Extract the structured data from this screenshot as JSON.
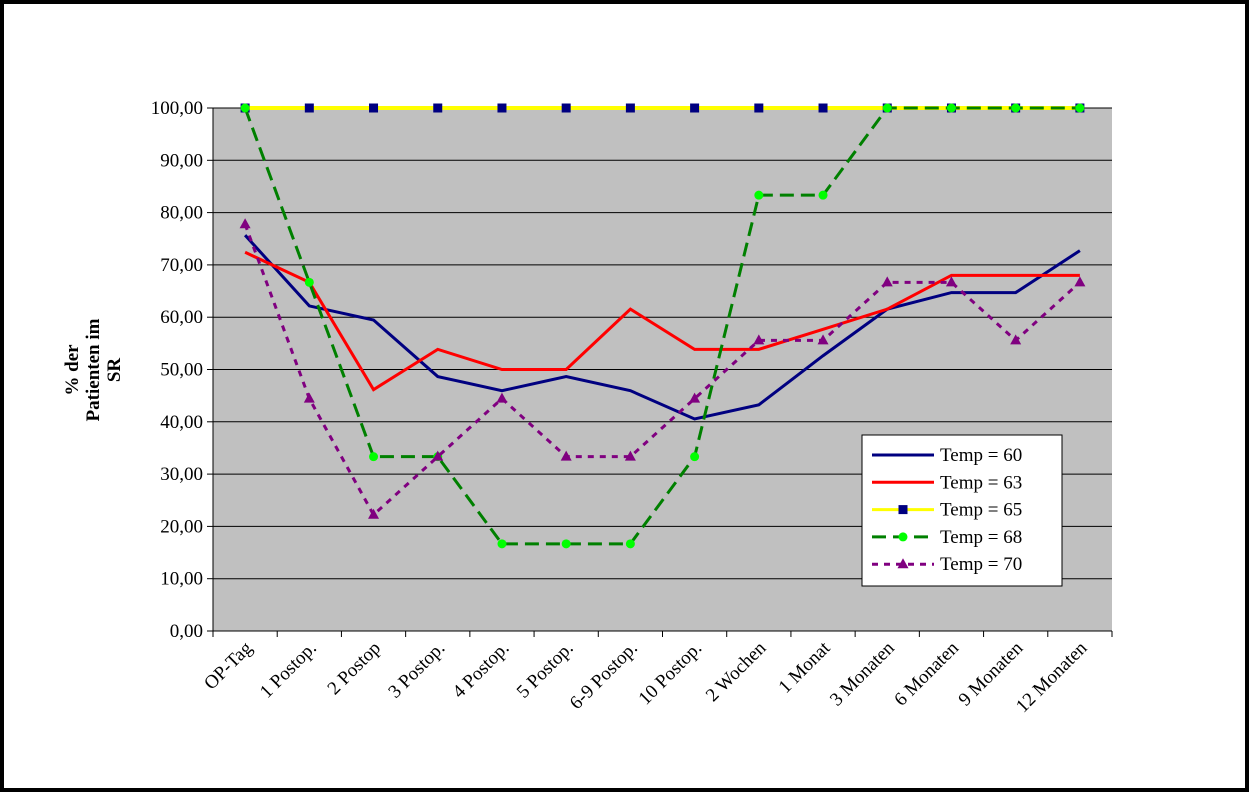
{
  "chart_data": {
    "type": "line",
    "ylabel": [
      "% der",
      "Patienten im",
      "SR"
    ],
    "categories": [
      "OP-Tag",
      "1 Postop.",
      "2 Postop",
      "3 Postop.",
      "4 Postop.",
      "5 Postop.",
      "6-9 Postop.",
      "10 Postop.",
      "2 Wochen",
      "1 Monat",
      "3 Monaten",
      "6 Monaten",
      "9 Monaten",
      "12 Monaten"
    ],
    "series": [
      {
        "name": "Temp = 60",
        "color": "#000080",
        "dash": "solid",
        "marker": "none",
        "marker_color": "#000080",
        "values": [
          75.68,
          62.16,
          59.46,
          48.65,
          45.95,
          48.65,
          45.95,
          40.54,
          43.24,
          52.63,
          61.54,
          64.71,
          64.71,
          72.73
        ]
      },
      {
        "name": "Temp = 63",
        "color": "#ff0000",
        "dash": "solid",
        "marker": "none",
        "marker_color": "#ff0000",
        "values": [
          72.41,
          66.67,
          46.15,
          53.85,
          50.0,
          50.0,
          61.54,
          53.85,
          53.85,
          57.69,
          61.54,
          68.0,
          68.0,
          68.0
        ]
      },
      {
        "name": "Temp = 65",
        "color": "#ffff00",
        "dash": "solid",
        "marker": "square",
        "marker_color": "#000080",
        "values": [
          100,
          100,
          100,
          100,
          100,
          100,
          100,
          100,
          100,
          100,
          100,
          100,
          100,
          100
        ]
      },
      {
        "name": "Temp = 68",
        "color": "#008000",
        "dash": "dashed",
        "marker": "circle",
        "marker_color": "#00ff00",
        "values": [
          100,
          66.67,
          33.33,
          33.33,
          16.67,
          16.67,
          16.67,
          33.33,
          83.33,
          83.33,
          100,
          100,
          100,
          100
        ]
      },
      {
        "name": "Temp = 70",
        "color": "#800080",
        "dash": "dotted",
        "marker": "triangle",
        "marker_color": "#800080",
        "values": [
          77.78,
          44.44,
          22.22,
          33.33,
          44.44,
          33.33,
          33.33,
          44.44,
          55.56,
          55.56,
          66.67,
          66.67,
          55.56,
          66.67
        ]
      }
    ],
    "ylim": [
      0,
      100
    ],
    "yticks": [
      {
        "value": 0,
        "label": "0,00"
      },
      {
        "value": 10,
        "label": "10,00"
      },
      {
        "value": 20,
        "label": "20,00"
      },
      {
        "value": 30,
        "label": "30,00"
      },
      {
        "value": 40,
        "label": "40,00"
      },
      {
        "value": 50,
        "label": "50,00"
      },
      {
        "value": 60,
        "label": "60,00"
      },
      {
        "value": 70,
        "label": "70,00"
      },
      {
        "value": 80,
        "label": "80,00"
      },
      {
        "value": 90,
        "label": "90,00"
      },
      {
        "value": 100,
        "label": "100,00"
      }
    ],
    "grid": true,
    "plot_background": "#c0c0c0",
    "legend": "lower right"
  }
}
